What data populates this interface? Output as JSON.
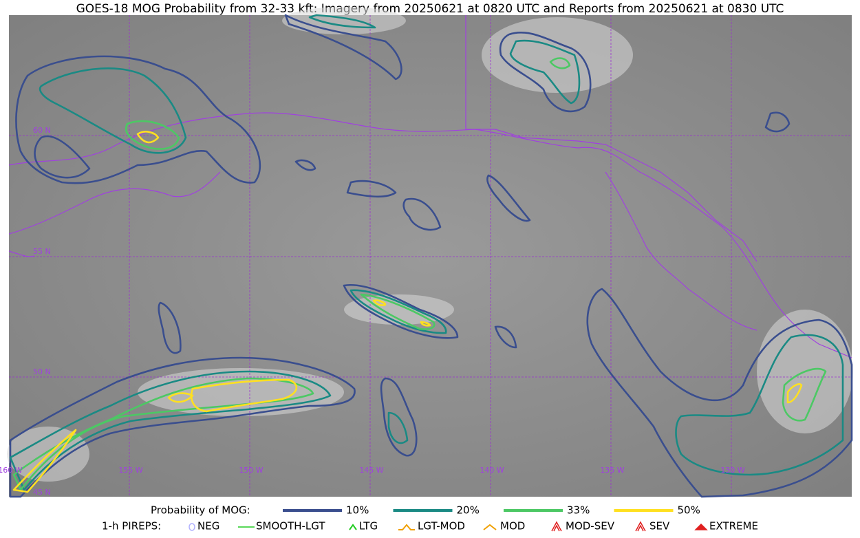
{
  "title": "GOES-18 MOG Probability from 32-33 kft: Imagery from 20250621 at 0820 UTC and Reports from 20250621 at 0830 UTC",
  "map": {
    "lat_labels": [
      "60 N",
      "55 N",
      "50 N",
      "45 N"
    ],
    "lon_labels": [
      "160 W",
      "155 W",
      "150 W",
      "145 W",
      "140 W",
      "135 W",
      "130 W"
    ]
  },
  "legend": {
    "probability": {
      "label": "Probability of MOG:",
      "entries": [
        {
          "label": "10%",
          "color": "#3a4e8e"
        },
        {
          "label": "20%",
          "color": "#1a8a84"
        },
        {
          "label": "33%",
          "color": "#4cc864"
        },
        {
          "label": "50%",
          "color": "#ffe020"
        }
      ]
    },
    "pireps": {
      "label": "1-h PIREPS:",
      "entries": [
        {
          "label": "NEG",
          "color": "#b0b0ff"
        },
        {
          "label": "SMOOTH-LGT",
          "color": "#22cc22"
        },
        {
          "label": "LTG",
          "color": "#22cc22"
        },
        {
          "label": "LGT-MOD",
          "color": "#f0a000"
        },
        {
          "label": "MOD",
          "color": "#f0a000"
        },
        {
          "label": "MOD-SEV",
          "color": "#e02020"
        },
        {
          "label": "SEV",
          "color": "#e02020"
        },
        {
          "label": "EXTREME",
          "color": "#e02020"
        }
      ]
    }
  }
}
